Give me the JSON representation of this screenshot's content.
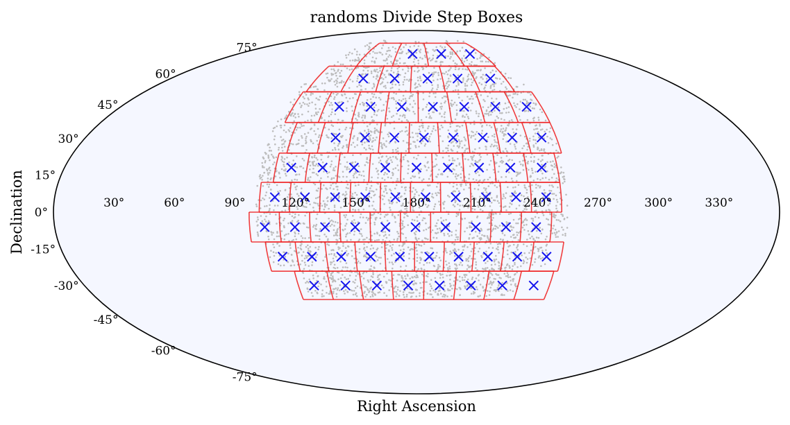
{
  "chart_data": {
    "type": "scatter",
    "projection": "mollweide",
    "title": "randoms Divide Step Boxes",
    "xlabel": "Right Ascension",
    "ylabel": "Declination",
    "ra_tick_labels": [
      "330°",
      "300°",
      "270°",
      "240°",
      "210°",
      "180°",
      "150°",
      "120°",
      "90°",
      "60°",
      "30°"
    ],
    "ra_tick_values": [
      330,
      300,
      270,
      240,
      210,
      180,
      150,
      120,
      90,
      60,
      30
    ],
    "dec_tick_labels": [
      "75°",
      "60°",
      "45°",
      "30°",
      "15°",
      "0°",
      "-15°",
      "-30°",
      "-45°",
      "-60°",
      "-75°"
    ],
    "dec_tick_values": [
      75,
      60,
      45,
      30,
      15,
      0,
      -15,
      -30,
      -45,
      -60,
      -75
    ],
    "ra_axis_reversed": true,
    "ra_center": 180,
    "grid": false,
    "colors": {
      "background": "#f5f7ff",
      "outline": "#000000",
      "randoms": "#bdbdbd",
      "box_edges": "#ee1c1c",
      "box_centers": "#1414ee"
    },
    "randoms_region": {
      "dec_range": [
        -35,
        80
      ],
      "ra_range_approx": [
        100,
        255
      ],
      "approx_point_count": 4000
    },
    "boxes": [
      {
        "dec_range": [
          64,
          78
        ],
        "ra_edges": [
          246,
          220,
          190,
          160,
          130
        ]
      },
      {
        "dec_range": [
          51,
          64
        ],
        "ra_edges": [
          245,
          222,
          199,
          176,
          153,
          130,
          107
        ]
      },
      {
        "dec_range": [
          37,
          51
        ],
        "ra_edges": [
          256,
          238,
          219,
          200,
          181,
          162,
          143,
          124,
          105
        ]
      },
      {
        "dec_range": [
          24,
          37
        ],
        "ra_edges": [
          256,
          240,
          224,
          208,
          192,
          176,
          160,
          144,
          128,
          112
        ]
      },
      {
        "dec_range": [
          12,
          24
        ],
        "ra_edges": [
          252,
          236,
          220,
          204,
          188,
          172,
          156,
          140,
          124,
          108
        ]
      },
      {
        "dec_range": [
          0,
          12
        ],
        "ra_edges": [
          252,
          237,
          222,
          207,
          192,
          177,
          162,
          147,
          132,
          117,
          102
        ]
      },
      {
        "dec_range": [
          -12,
          0
        ],
        "ra_edges": [
          247,
          232,
          217,
          202,
          187,
          172,
          157,
          142,
          127,
          112,
          97
        ]
      },
      {
        "dec_range": [
          -24,
          -12
        ],
        "ra_edges": [
          254,
          239,
          224,
          209,
          194,
          179,
          164,
          149,
          134,
          119,
          104
        ]
      },
      {
        "dec_range": [
          -36,
          -24
        ],
        "ra_edges": [
          252,
          235,
          218,
          201,
          184,
          167,
          150,
          133,
          116
        ]
      }
    ],
    "box_centers": [
      {
        "ra": 234,
        "dec": 71
      },
      {
        "ra": 205,
        "dec": 71
      },
      {
        "ra": 176,
        "dec": 71
      },
      {
        "ra": 234,
        "dec": 57.5
      },
      {
        "ra": 210,
        "dec": 57.5
      },
      {
        "ra": 188,
        "dec": 57.5
      },
      {
        "ra": 164,
        "dec": 57.5
      },
      {
        "ra": 141,
        "dec": 57.5
      },
      {
        "ra": 247,
        "dec": 44
      },
      {
        "ra": 228,
        "dec": 44
      },
      {
        "ra": 209,
        "dec": 44
      },
      {
        "ra": 190,
        "dec": 44
      },
      {
        "ra": 171,
        "dec": 44
      },
      {
        "ra": 152,
        "dec": 44
      },
      {
        "ra": 133,
        "dec": 44
      },
      {
        "ra": 248,
        "dec": 30.5
      },
      {
        "ra": 232,
        "dec": 30.5
      },
      {
        "ra": 216,
        "dec": 30.5
      },
      {
        "ra": 200,
        "dec": 30.5
      },
      {
        "ra": 184,
        "dec": 30.5
      },
      {
        "ra": 168,
        "dec": 30.5
      },
      {
        "ra": 152,
        "dec": 30.5
      },
      {
        "ra": 136,
        "dec": 30.5
      },
      {
        "ra": 244,
        "dec": 18
      },
      {
        "ra": 228,
        "dec": 18
      },
      {
        "ra": 212,
        "dec": 18
      },
      {
        "ra": 196,
        "dec": 18
      },
      {
        "ra": 180,
        "dec": 18
      },
      {
        "ra": 164,
        "dec": 18
      },
      {
        "ra": 148,
        "dec": 18
      },
      {
        "ra": 132,
        "dec": 18
      },
      {
        "ra": 116,
        "dec": 18
      },
      {
        "ra": 244.5,
        "dec": 6
      },
      {
        "ra": 229.5,
        "dec": 6
      },
      {
        "ra": 214.5,
        "dec": 6
      },
      {
        "ra": 199.5,
        "dec": 6
      },
      {
        "ra": 184.5,
        "dec": 6
      },
      {
        "ra": 169.5,
        "dec": 6
      },
      {
        "ra": 154.5,
        "dec": 6
      },
      {
        "ra": 139.5,
        "dec": 6
      },
      {
        "ra": 124.5,
        "dec": 6
      },
      {
        "ra": 109.5,
        "dec": 6
      },
      {
        "ra": 239.5,
        "dec": -6
      },
      {
        "ra": 224.5,
        "dec": -6
      },
      {
        "ra": 209.5,
        "dec": -6
      },
      {
        "ra": 194.5,
        "dec": -6
      },
      {
        "ra": 179.5,
        "dec": -6
      },
      {
        "ra": 164.5,
        "dec": -6
      },
      {
        "ra": 149.5,
        "dec": -6
      },
      {
        "ra": 134.5,
        "dec": -6
      },
      {
        "ra": 119.5,
        "dec": -6
      },
      {
        "ra": 104.5,
        "dec": -6
      },
      {
        "ra": 246.5,
        "dec": -18
      },
      {
        "ra": 231.5,
        "dec": -18
      },
      {
        "ra": 216.5,
        "dec": -18
      },
      {
        "ra": 201.5,
        "dec": -18
      },
      {
        "ra": 186.5,
        "dec": -18
      },
      {
        "ra": 171.5,
        "dec": -18
      },
      {
        "ra": 156.5,
        "dec": -18
      },
      {
        "ra": 141.5,
        "dec": -18
      },
      {
        "ra": 126.5,
        "dec": -18
      },
      {
        "ra": 111.5,
        "dec": -18
      },
      {
        "ra": 243.5,
        "dec": -30
      },
      {
        "ra": 226.5,
        "dec": -30
      },
      {
        "ra": 209.5,
        "dec": -30
      },
      {
        "ra": 192.5,
        "dec": -30
      },
      {
        "ra": 175.5,
        "dec": -30
      },
      {
        "ra": 158.5,
        "dec": -30
      },
      {
        "ra": 141.5,
        "dec": -30
      },
      {
        "ra": 124.5,
        "dec": -30
      }
    ]
  }
}
